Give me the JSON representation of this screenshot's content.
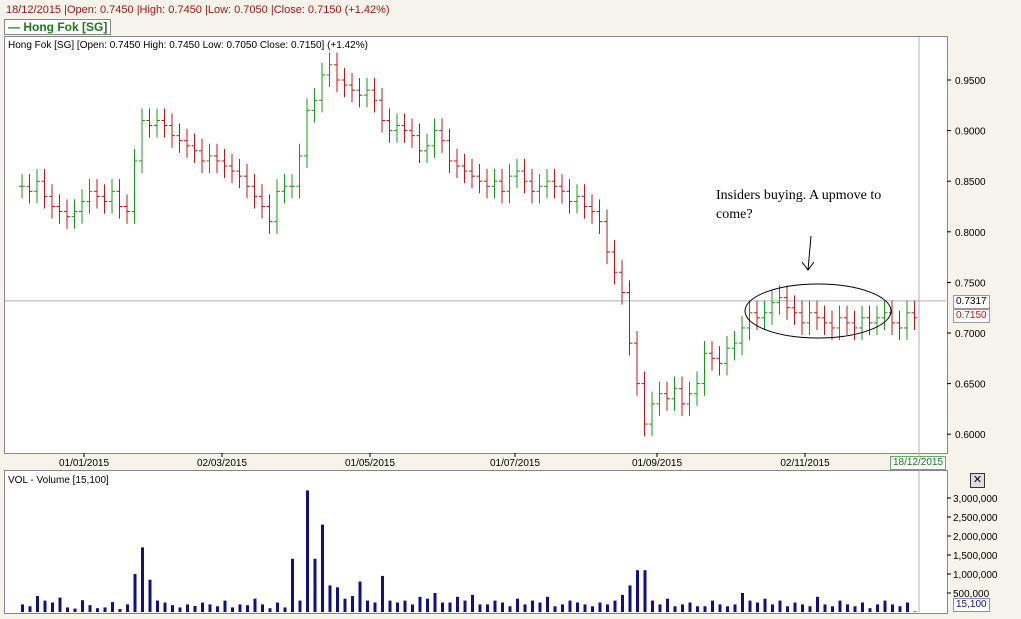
{
  "header": {
    "summary": "18/12/2015 |Open: 0.7450 |High: 0.7450 |Low: 0.7050 |Close: 0.7150 (+1.42%)",
    "legend": "Hong Fok [SG]"
  },
  "price_panel": {
    "title": "Hong Fok [SG] [Open: 0.7450  High: 0.7450  Low: 0.7050  Close: 0.7150] (+1.42%)",
    "crosshair_value": "0.7317",
    "last_value": "0.7150",
    "date_tag": "18/12/2015"
  },
  "volume_panel": {
    "title": "VOL - Volume [15,100]",
    "last_value": "15,100"
  },
  "annotation": {
    "text": "Insiders buying. A upmove to come?"
  },
  "colors": {
    "up": "#1a9a1a",
    "down": "#c01818",
    "volume": "#101080",
    "crosshair": "#b0b0b0"
  },
  "chart_data": [
    {
      "type": "ohlc",
      "title": "Hong Fok [SG]",
      "ylim": [
        0.585,
        0.99
      ],
      "y_ticks": [
        "0.9500",
        "0.9000",
        "0.8500",
        "0.8000",
        "0.7500",
        "0.7000",
        "0.6500",
        "0.6000"
      ],
      "x_ticks": [
        "01/01/2015",
        "02/03/2015",
        "01/05/2015",
        "01/07/2015",
        "01/09/2015",
        "02/11/2015"
      ],
      "close": [
        0.845,
        0.84,
        0.85,
        0.835,
        0.825,
        0.82,
        0.815,
        0.82,
        0.83,
        0.84,
        0.835,
        0.83,
        0.84,
        0.825,
        0.82,
        0.87,
        0.91,
        0.905,
        0.91,
        0.905,
        0.895,
        0.89,
        0.885,
        0.88,
        0.87,
        0.875,
        0.87,
        0.865,
        0.86,
        0.855,
        0.845,
        0.835,
        0.825,
        0.81,
        0.84,
        0.845,
        0.845,
        0.875,
        0.92,
        0.93,
        0.955,
        0.965,
        0.95,
        0.945,
        0.94,
        0.935,
        0.94,
        0.93,
        0.91,
        0.9,
        0.905,
        0.9,
        0.895,
        0.88,
        0.885,
        0.9,
        0.89,
        0.87,
        0.865,
        0.86,
        0.855,
        0.85,
        0.845,
        0.85,
        0.84,
        0.855,
        0.86,
        0.85,
        0.84,
        0.845,
        0.85,
        0.845,
        0.84,
        0.83,
        0.835,
        0.825,
        0.82,
        0.81,
        0.78,
        0.76,
        0.74,
        0.69,
        0.65,
        0.61,
        0.63,
        0.64,
        0.635,
        0.645,
        0.63,
        0.64,
        0.65,
        0.68,
        0.675,
        0.67,
        0.685,
        0.69,
        0.705,
        0.72,
        0.715,
        0.72,
        0.73,
        0.735,
        0.725,
        0.72,
        0.71,
        0.72,
        0.715,
        0.71,
        0.705,
        0.715,
        0.71,
        0.705,
        0.715,
        0.71,
        0.715,
        0.72,
        0.71,
        0.705,
        0.72,
        0.715
      ]
    },
    {
      "type": "bar",
      "title": "VOL - Volume [15,100]",
      "ylim": [
        0,
        3500000
      ],
      "y_ticks": [
        "3,000,000",
        "2,500,000",
        "2,000,000",
        "1,500,000",
        "1,000,000",
        "500,000"
      ],
      "values": [
        200000,
        150000,
        420000,
        300000,
        250000,
        380000,
        120000,
        90000,
        310000,
        180000,
        100000,
        120000,
        260000,
        80000,
        200000,
        1000000,
        1700000,
        850000,
        300000,
        250000,
        180000,
        120000,
        200000,
        160000,
        250000,
        200000,
        150000,
        300000,
        120000,
        200000,
        180000,
        350000,
        200000,
        100000,
        250000,
        120000,
        1400000,
        300000,
        3200000,
        1400000,
        2300000,
        700000,
        650000,
        350000,
        420000,
        800000,
        300000,
        250000,
        950000,
        300000,
        250000,
        300000,
        200000,
        400000,
        350000,
        500000,
        250000,
        250000,
        400000,
        300000,
        450000,
        200000,
        200000,
        300000,
        250000,
        150000,
        350000,
        200000,
        300000,
        250000,
        400000,
        150000,
        200000,
        300000,
        250000,
        200000,
        150000,
        250000,
        200000,
        300000,
        450000,
        700000,
        1100000,
        1100000,
        300000,
        200000,
        350000,
        150000,
        200000,
        250000,
        150000,
        150000,
        300000,
        200000,
        150000,
        200000,
        500000,
        300000,
        250000,
        350000,
        200000,
        300000,
        150000,
        250000,
        200000,
        150000,
        400000,
        200000,
        150000,
        300000,
        200000,
        150000,
        250000,
        100000,
        200000,
        300000,
        200000,
        150000,
        250000,
        15100
      ]
    }
  ]
}
